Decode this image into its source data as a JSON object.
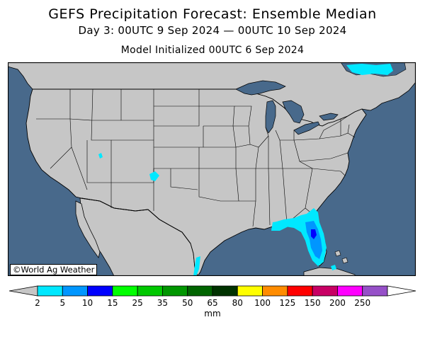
{
  "header": {
    "title": "GEFS Precipitation Forecast: Ensemble Median",
    "period": "Day 3: 00UTC 9 Sep 2024 — 00UTC 10 Sep 2024",
    "initialized": "Model Initialized 00UTC 6 Sep 2024"
  },
  "map": {
    "credit": "©World Ag Weather",
    "land_color": "#c6c6c6",
    "water_color": "#48698b",
    "border_color": "#000000"
  },
  "legend": {
    "units": "mm",
    "ticks": [
      "2",
      "5",
      "10",
      "15",
      "25",
      "35",
      "50",
      "65",
      "80",
      "100",
      "125",
      "150",
      "200",
      "250"
    ],
    "colors": [
      "#00e8ff",
      "#0096ff",
      "#0000ff",
      "#00ff00",
      "#00c800",
      "#009600",
      "#006400",
      "#003200",
      "#ffff00",
      "#ff8c00",
      "#ff0000",
      "#c80064",
      "#ff00ff",
      "#9650c8"
    ],
    "under_color": "#c6c6c6",
    "over_color": "#ffffff"
  }
}
